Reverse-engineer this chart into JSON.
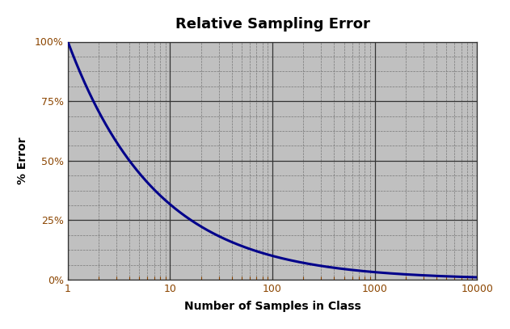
{
  "title": "Relative Sampling Error",
  "xlabel": "Number of Samples in Class",
  "ylabel": "% Error",
  "xlim": [
    1,
    10000
  ],
  "ylim": [
    0,
    1.0
  ],
  "yticks": [
    0.0,
    0.25,
    0.5,
    0.75,
    1.0
  ],
  "ytick_labels": [
    "0%",
    "25%",
    "50%",
    "75%",
    "100%"
  ],
  "xticks": [
    1,
    10,
    100,
    1000,
    10000
  ],
  "xtick_labels": [
    "1",
    "10",
    "100",
    "1000",
    "10000"
  ],
  "curve_color": "#00008B",
  "curve_linewidth": 2.2,
  "background_color": "#C0C0C0",
  "major_grid_color": "#333333",
  "minor_grid_color": "#777777",
  "title_fontsize": 13,
  "label_fontsize": 10,
  "tick_fontsize": 9,
  "tick_color": "#8B4500",
  "figsize": [
    6.31,
    4.07
  ],
  "dpi": 100
}
